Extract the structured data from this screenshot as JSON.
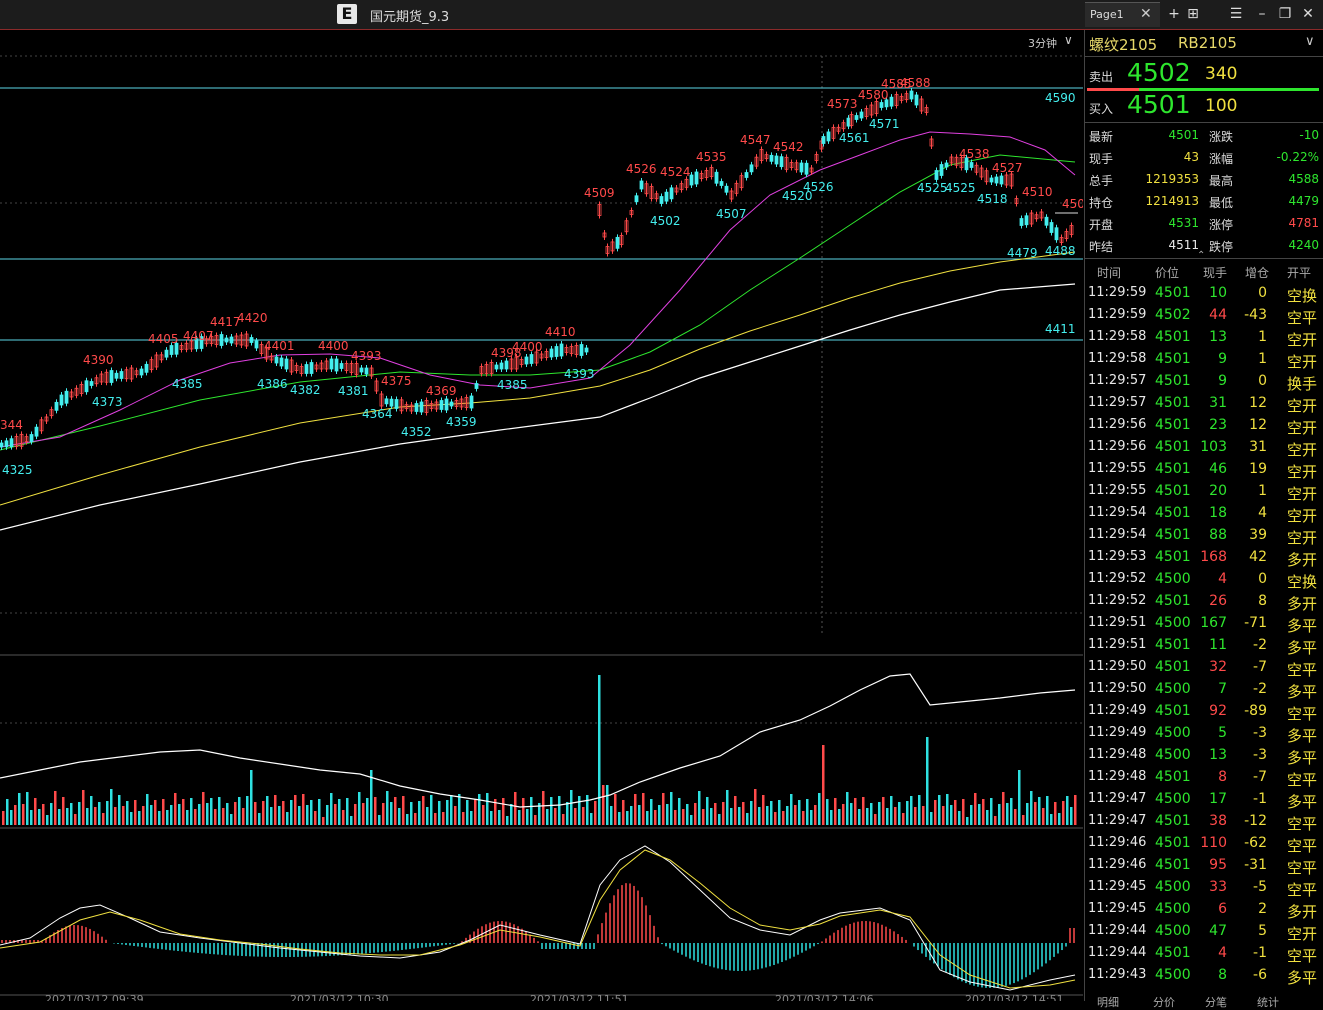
{
  "app": {
    "logo": "E",
    "title": "国元期货_9.3"
  },
  "tab": {
    "label": "Page1"
  },
  "icons": {
    "close": "close-icon",
    "add": "add-icon",
    "layout": "layout-icon",
    "menu": "menu-icon",
    "minimize": "minimize-icon",
    "restore": "restore-icon",
    "window_close": "window-close-icon"
  },
  "chart": {
    "period": "3分钟",
    "hlines": [
      "4590",
      "4411"
    ],
    "price_labels_red": [
      "4509",
      "4526",
      "4524",
      "4535",
      "4547",
      "4542",
      "4573",
      "4580",
      "4585",
      "4588",
      "4538",
      "4527",
      "4510",
      "450",
      "4390",
      "4405",
      "4407",
      "4417",
      "4420",
      "4401",
      "4400",
      "4393",
      "4375",
      "4369",
      "4398",
      "4400",
      "4410",
      "344"
    ],
    "price_labels_cyan": [
      "4502",
      "4507",
      "4520",
      "4526",
      "4561",
      "4571",
      "4525",
      "4525",
      "4518",
      "4479",
      "4488",
      "4373",
      "4385",
      "4386",
      "4382",
      "4381",
      "4364",
      "4352",
      "4359",
      "4385",
      "4393",
      "4325"
    ],
    "date_labels": [
      "2021/03/12 09:39",
      "2021/03/12 10:30",
      "2021/03/12 11:51",
      "2021/03/12 14:06",
      "2021/03/12 14:51"
    ]
  },
  "quote": {
    "name": "螺纹2105",
    "code": "RB2105",
    "ask_label": "卖出",
    "ask_price": "4502",
    "ask_vol": "340",
    "bid_label": "买入",
    "bid_price": "4501",
    "bid_vol": "100",
    "stats": [
      {
        "l1": "最新",
        "v1": "4501",
        "c1": "g",
        "l2": "涨跌",
        "v2": "-10",
        "c2": "g"
      },
      {
        "l1": "现手",
        "v1": "43",
        "c1": "y",
        "l2": "涨幅",
        "v2": "-0.22%",
        "c2": "g"
      },
      {
        "l1": "总手",
        "v1": "1219353",
        "c1": "y",
        "l2": "最高",
        "v2": "4588",
        "c2": "g"
      },
      {
        "l1": "持仓",
        "v1": "1214913",
        "c1": "y",
        "l2": "最低",
        "v2": "4479",
        "c2": "g"
      },
      {
        "l1": "开盘",
        "v1": "4531",
        "c1": "g",
        "l2": "涨停",
        "v2": "4781",
        "c2": "r"
      },
      {
        "l1": "昨结",
        "v1": "4511",
        "c1": "w",
        "l2": "跌停",
        "v2": "4240",
        "c2": "g"
      }
    ]
  },
  "ticks": {
    "headers": [
      "时间",
      "价位",
      "现手",
      "增仓",
      "开平"
    ],
    "rows": [
      [
        "11:29:59",
        "4501",
        "10",
        "0",
        "空换",
        "g",
        "g",
        "y",
        "y"
      ],
      [
        "11:29:59",
        "4502",
        "44",
        "-43",
        "空平",
        "g",
        "r",
        "y",
        "y"
      ],
      [
        "11:29:58",
        "4501",
        "13",
        "1",
        "空开",
        "g",
        "g",
        "y",
        "y"
      ],
      [
        "11:29:58",
        "4501",
        "9",
        "1",
        "空开",
        "g",
        "g",
        "y",
        "y"
      ],
      [
        "11:29:57",
        "4501",
        "9",
        "0",
        "换手",
        "g",
        "g",
        "y",
        "y"
      ],
      [
        "11:29:57",
        "4501",
        "31",
        "12",
        "空开",
        "g",
        "g",
        "y",
        "y"
      ],
      [
        "11:29:56",
        "4501",
        "23",
        "12",
        "空开",
        "g",
        "g",
        "y",
        "y"
      ],
      [
        "11:29:56",
        "4501",
        "103",
        "31",
        "空开",
        "g",
        "g",
        "y",
        "y"
      ],
      [
        "11:29:55",
        "4501",
        "46",
        "19",
        "空开",
        "g",
        "g",
        "y",
        "y"
      ],
      [
        "11:29:55",
        "4501",
        "20",
        "1",
        "空开",
        "g",
        "g",
        "y",
        "y"
      ],
      [
        "11:29:54",
        "4501",
        "18",
        "4",
        "空开",
        "g",
        "g",
        "y",
        "y"
      ],
      [
        "11:29:54",
        "4501",
        "88",
        "39",
        "空开",
        "g",
        "g",
        "y",
        "y"
      ],
      [
        "11:29:53",
        "4501",
        "168",
        "42",
        "多开",
        "g",
        "r",
        "y",
        "y"
      ],
      [
        "11:29:52",
        "4500",
        "4",
        "0",
        "空换",
        "g",
        "r",
        "y",
        "y"
      ],
      [
        "11:29:52",
        "4501",
        "26",
        "8",
        "多开",
        "g",
        "r",
        "y",
        "y"
      ],
      [
        "11:29:51",
        "4500",
        "167",
        "-71",
        "多平",
        "g",
        "g",
        "y",
        "y"
      ],
      [
        "11:29:51",
        "4501",
        "11",
        "-2",
        "多平",
        "g",
        "g",
        "y",
        "y"
      ],
      [
        "11:29:50",
        "4501",
        "32",
        "-7",
        "空平",
        "g",
        "r",
        "y",
        "y"
      ],
      [
        "11:29:50",
        "4500",
        "7",
        "-2",
        "多平",
        "g",
        "g",
        "y",
        "y"
      ],
      [
        "11:29:49",
        "4501",
        "92",
        "-89",
        "空平",
        "g",
        "r",
        "y",
        "y"
      ],
      [
        "11:29:49",
        "4500",
        "5",
        "-3",
        "多平",
        "g",
        "g",
        "y",
        "y"
      ],
      [
        "11:29:48",
        "4500",
        "13",
        "-3",
        "多平",
        "g",
        "g",
        "y",
        "y"
      ],
      [
        "11:29:48",
        "4501",
        "8",
        "-7",
        "空平",
        "g",
        "r",
        "y",
        "y"
      ],
      [
        "11:29:47",
        "4500",
        "17",
        "-1",
        "多平",
        "g",
        "g",
        "y",
        "y"
      ],
      [
        "11:29:47",
        "4501",
        "38",
        "-12",
        "空平",
        "g",
        "r",
        "y",
        "y"
      ],
      [
        "11:29:46",
        "4501",
        "110",
        "-62",
        "空平",
        "g",
        "r",
        "y",
        "y"
      ],
      [
        "11:29:46",
        "4501",
        "95",
        "-31",
        "空平",
        "g",
        "r",
        "y",
        "y"
      ],
      [
        "11:29:45",
        "4500",
        "33",
        "-5",
        "空平",
        "g",
        "r",
        "y",
        "y"
      ],
      [
        "11:29:45",
        "4500",
        "6",
        "2",
        "多开",
        "g",
        "r",
        "y",
        "y"
      ],
      [
        "11:29:44",
        "4500",
        "47",
        "5",
        "空开",
        "g",
        "g",
        "y",
        "y"
      ],
      [
        "11:29:44",
        "4501",
        "4",
        "-1",
        "空平",
        "g",
        "r",
        "y",
        "y"
      ],
      [
        "11:29:43",
        "4500",
        "8",
        "-6",
        "多平",
        "g",
        "g",
        "y",
        "y"
      ]
    ]
  },
  "bottom_tabs": [
    "明细",
    "分价",
    "分笔",
    "统计"
  ]
}
